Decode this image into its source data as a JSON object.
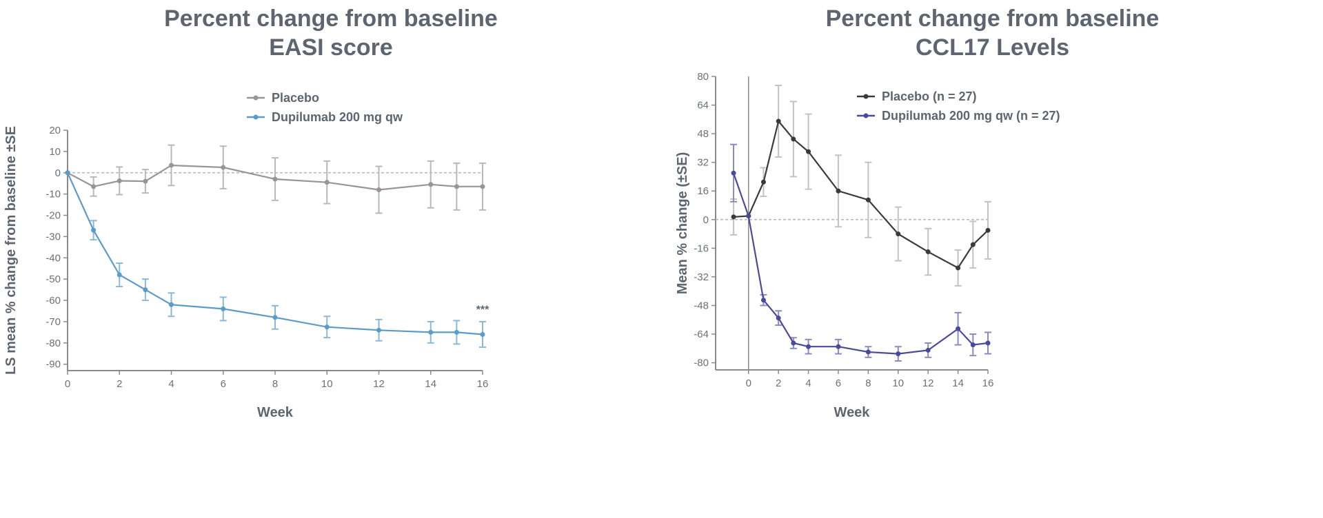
{
  "chart_data": [
    {
      "type": "line",
      "title": "Percent change from baseline",
      "subtitle": "EASI score",
      "xlabel": "Week",
      "ylabel": "LS mean % change from baseline ±SE",
      "xlim": [
        0,
        16
      ],
      "ylim": [
        -93,
        20
      ],
      "xticks": [
        0,
        2,
        4,
        6,
        8,
        10,
        12,
        14,
        16
      ],
      "yticks": [
        20,
        10,
        0,
        -10,
        -20,
        -30,
        -40,
        -50,
        -60,
        -70,
        -80,
        -90
      ],
      "reference_line_y": 0,
      "x": [
        0,
        1,
        2,
        3,
        4,
        6,
        8,
        10,
        12,
        14,
        15,
        16
      ],
      "series": [
        {
          "name": "Placebo",
          "color": "#9a9494",
          "errbar_color": "#b8b8b8",
          "values": [
            0,
            -6.5,
            -3.8,
            -4,
            3.5,
            2.5,
            -3,
            -4.5,
            -8,
            -5.5,
            -6.5,
            -6.5
          ],
          "se": [
            0,
            4.5,
            6.5,
            5.5,
            9.5,
            10,
            10,
            10,
            11,
            11,
            11,
            11
          ]
        },
        {
          "name": "Dupilumab 200 mg qw",
          "color": "#5b9bc8",
          "errbar_color": "#8cb8d8",
          "values": [
            0,
            -27,
            -48,
            -55,
            -62,
            -64,
            -68,
            -72.5,
            -74,
            -75,
            -75,
            -76
          ],
          "se": [
            0,
            4.5,
            5.5,
            5,
            5.5,
            5.5,
            5.5,
            5,
            5,
            5,
            5.5,
            6
          ]
        }
      ],
      "annotations": [
        {
          "text": "***",
          "x": 16,
          "y": -66
        }
      ],
      "legend": "top-right",
      "grid": false
    },
    {
      "type": "line",
      "title": "Percent change from baseline",
      "subtitle": "CCL17 Levels",
      "xlabel": "Week",
      "ylabel": "Mean % change (±SE)",
      "xlim": [
        -2.2,
        16
      ],
      "ylim": [
        -84,
        80
      ],
      "xticks": [
        0,
        2,
        4,
        6,
        8,
        10,
        12,
        14,
        16
      ],
      "yticks": [
        80,
        64,
        48,
        32,
        16,
        0,
        -16,
        -32,
        -48,
        -64,
        -80
      ],
      "reference_line_y": 0,
      "vertical_line_x": 0,
      "x": [
        -1,
        0,
        1,
        2,
        3,
        4,
        6,
        8,
        10,
        12,
        14,
        15,
        16
      ],
      "series": [
        {
          "name": "Placebo (n = 27)",
          "color": "#3a3a3a",
          "errbar_color": "#c2c2c2",
          "values": [
            1.5,
            2,
            21,
            55,
            45,
            38,
            16,
            11,
            -8,
            -18,
            -27,
            -14,
            -6
          ],
          "se": [
            10,
            0,
            8,
            20,
            21,
            21,
            20,
            21,
            15,
            13,
            10,
            13,
            16
          ]
        },
        {
          "name": "Dupilumab 200 mg qw (n = 27)",
          "color": "#4a4a9a",
          "errbar_color": "#8a8ac0",
          "values": [
            26,
            2,
            -45,
            -55,
            -69,
            -71,
            -71,
            -74,
            -75,
            -73,
            -61,
            -70,
            -69
          ],
          "se": [
            16,
            0,
            3,
            4,
            3,
            4,
            4,
            3,
            4,
            4,
            9,
            6,
            6
          ]
        }
      ],
      "legend": "top-right",
      "grid": false
    }
  ]
}
